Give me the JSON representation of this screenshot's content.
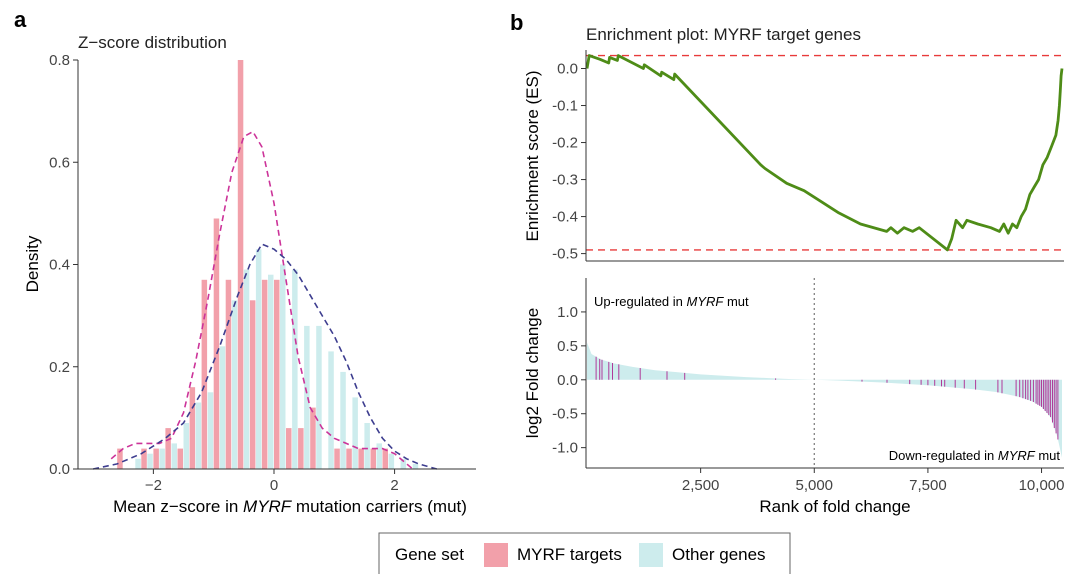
{
  "panel_a": {
    "letter": "a",
    "chart_data": {
      "type": "bar",
      "title": "Z−score distribution",
      "xlabel_parts": [
        "Mean z−score in ",
        "MYRF",
        " mutation carriers (mut)"
      ],
      "ylabel": "Density",
      "xlim": [
        -3.25,
        3.35
      ],
      "ylim": [
        0,
        0.8
      ],
      "xticks": [
        {
          "v": -2,
          "label": "−2"
        },
        {
          "v": 0,
          "label": "0"
        },
        {
          "v": 2,
          "label": "2"
        }
      ],
      "yticks": [
        {
          "v": 0,
          "label": "0.0"
        },
        {
          "v": 0.2,
          "label": "0.2"
        },
        {
          "v": 0.4,
          "label": "0.4"
        },
        {
          "v": 0.6,
          "label": "0.6"
        },
        {
          "v": 0.8,
          "label": "0.8"
        }
      ],
      "bin_width": 0.2,
      "bin_starts": [
        -2.6,
        -2.4,
        -2.2,
        -2.0,
        -1.8,
        -1.6,
        -1.4,
        -1.2,
        -1.0,
        -0.8,
        -0.6,
        -0.4,
        -0.2,
        0.0,
        0.2,
        0.4,
        0.6,
        0.8,
        1.0,
        1.2,
        1.4,
        1.6,
        1.8,
        2.0,
        2.2
      ],
      "series": [
        {
          "name": "MYRF targets",
          "color": "#f2a0aa",
          "values": [
            0.04,
            0.0,
            0.04,
            0.04,
            0.08,
            0.04,
            0.16,
            0.37,
            0.49,
            0.37,
            0.8,
            0.33,
            0.37,
            0.37,
            0.08,
            0.08,
            0.12,
            0.0,
            0.04,
            0.04,
            0.04,
            0.04,
            0.04,
            0.0,
            0.0
          ]
        },
        {
          "name": "Other genes",
          "color": "#cdeced",
          "values": [
            0.0,
            0.02,
            0.03,
            0.04,
            0.05,
            0.09,
            0.13,
            0.15,
            0.24,
            0.33,
            0.39,
            0.43,
            0.38,
            0.4,
            0.39,
            0.28,
            0.28,
            0.23,
            0.19,
            0.14,
            0.09,
            0.05,
            0.03,
            0.02,
            0.01
          ]
        }
      ],
      "density_curves": [
        {
          "series": "MYRF targets",
          "color": "#cc3399",
          "points": [
            [
              -2.7,
              0.02
            ],
            [
              -2.5,
              0.04
            ],
            [
              -2.3,
              0.05
            ],
            [
              -2.1,
              0.05
            ],
            [
              -1.9,
              0.05
            ],
            [
              -1.7,
              0.06
            ],
            [
              -1.5,
              0.11
            ],
            [
              -1.3,
              0.21
            ],
            [
              -1.1,
              0.33
            ],
            [
              -0.9,
              0.46
            ],
            [
              -0.7,
              0.58
            ],
            [
              -0.5,
              0.65
            ],
            [
              -0.35,
              0.66
            ],
            [
              -0.2,
              0.63
            ],
            [
              0.0,
              0.52
            ],
            [
              0.2,
              0.37
            ],
            [
              0.4,
              0.22
            ],
            [
              0.6,
              0.12
            ],
            [
              0.8,
              0.08
            ],
            [
              1.0,
              0.06
            ],
            [
              1.2,
              0.05
            ],
            [
              1.4,
              0.04
            ],
            [
              1.6,
              0.04
            ],
            [
              1.8,
              0.04
            ],
            [
              2.0,
              0.03
            ],
            [
              2.2,
              0.01
            ],
            [
              2.3,
              0.0
            ]
          ]
        },
        {
          "series": "Other genes",
          "color": "#3d3d8f",
          "points": [
            [
              -3.0,
              0.0
            ],
            [
              -2.6,
              0.01
            ],
            [
              -2.2,
              0.03
            ],
            [
              -1.8,
              0.06
            ],
            [
              -1.5,
              0.09
            ],
            [
              -1.2,
              0.15
            ],
            [
              -0.9,
              0.24
            ],
            [
              -0.6,
              0.34
            ],
            [
              -0.4,
              0.4
            ],
            [
              -0.2,
              0.44
            ],
            [
              0.0,
              0.43
            ],
            [
              0.2,
              0.41
            ],
            [
              0.4,
              0.38
            ],
            [
              0.6,
              0.34
            ],
            [
              0.8,
              0.3
            ],
            [
              1.0,
              0.26
            ],
            [
              1.2,
              0.21
            ],
            [
              1.4,
              0.15
            ],
            [
              1.6,
              0.1
            ],
            [
              1.8,
              0.06
            ],
            [
              2.0,
              0.035
            ],
            [
              2.2,
              0.02
            ],
            [
              2.4,
              0.01
            ],
            [
              2.7,
              0.0
            ]
          ]
        }
      ]
    }
  },
  "panel_b": {
    "letter": "b",
    "es_chart": {
      "type": "line",
      "title": "Enrichment plot: MYRF target genes",
      "ylabel": "Enrichment score (ES)",
      "xlim": [
        0,
        10450
      ],
      "ylim": [
        -0.52,
        0.05
      ],
      "yticks": [
        {
          "v": 0.0,
          "label": "0.0"
        },
        {
          "v": -0.1,
          "label": "-0.1"
        },
        {
          "v": -0.2,
          "label": "-0.2"
        },
        {
          "v": -0.3,
          "label": "-0.3"
        },
        {
          "v": -0.4,
          "label": "-0.4"
        },
        {
          "v": -0.5,
          "label": "-0.5"
        }
      ],
      "reference_lines": [
        0.035,
        -0.49
      ],
      "line_color": "#4e8c17",
      "ref_color": "#e83a3a",
      "points": [
        [
          0,
          0.0
        ],
        [
          50,
          0.035
        ],
        [
          300,
          0.025
        ],
        [
          500,
          0.015
        ],
        [
          520,
          0.03
        ],
        [
          700,
          0.022
        ],
        [
          720,
          0.035
        ],
        [
          1300,
          0.0
        ],
        [
          1320,
          0.01
        ],
        [
          1700,
          -0.02
        ],
        [
          1720,
          -0.01
        ],
        [
          2000,
          -0.03
        ],
        [
          2020,
          -0.015
        ],
        [
          4000,
          -0.26
        ],
        [
          4100,
          -0.27
        ],
        [
          4600,
          -0.31
        ],
        [
          5000,
          -0.33
        ],
        [
          5400,
          -0.36
        ],
        [
          5800,
          -0.39
        ],
        [
          6300,
          -0.42
        ],
        [
          6900,
          -0.44
        ],
        [
          7000,
          -0.43
        ],
        [
          7150,
          -0.445
        ],
        [
          7300,
          -0.43
        ],
        [
          7500,
          -0.44
        ],
        [
          7650,
          -0.43
        ],
        [
          8300,
          -0.49
        ],
        [
          8400,
          -0.46
        ],
        [
          8500,
          -0.41
        ],
        [
          8650,
          -0.43
        ],
        [
          8750,
          -0.41
        ],
        [
          9000,
          -0.42
        ],
        [
          9300,
          -0.43
        ],
        [
          9500,
          -0.44
        ],
        [
          9600,
          -0.42
        ],
        [
          9700,
          -0.445
        ],
        [
          9800,
          -0.42
        ],
        [
          9900,
          -0.43
        ],
        [
          10000,
          -0.4
        ],
        [
          10100,
          -0.38
        ],
        [
          10200,
          -0.34
        ],
        [
          10300,
          -0.32
        ],
        [
          10400,
          -0.3
        ],
        [
          10500,
          -0.26
        ],
        [
          10600,
          -0.24
        ],
        [
          10700,
          -0.21
        ],
        [
          10800,
          -0.18
        ],
        [
          10850,
          -0.14
        ],
        [
          10880,
          -0.1
        ],
        [
          10900,
          -0.06
        ],
        [
          10920,
          -0.02
        ],
        [
          10940,
          0.0
        ]
      ]
    },
    "fc_chart": {
      "type": "area",
      "ylabel": "log2 Fold change",
      "xlabel": "Rank of fold change",
      "xlim": [
        0,
        10450
      ],
      "ylim": [
        -1.3,
        1.5
      ],
      "xticks": [
        {
          "v": 2500,
          "label": "2,500"
        },
        {
          "v": 5000,
          "label": "5,000"
        },
        {
          "v": 7500,
          "label": "7,500"
        },
        {
          "v": 10000,
          "label": "10,000"
        }
      ],
      "yticks": [
        {
          "v": 1.0,
          "label": "1.0"
        },
        {
          "v": 0.5,
          "label": "0.5"
        },
        {
          "v": 0.0,
          "label": "0.0"
        },
        {
          "v": -0.5,
          "label": "-0.5"
        },
        {
          "v": -1.0,
          "label": "-1.0"
        }
      ],
      "area_color": "#cdeced",
      "tick_color": "#b03a9a",
      "divider_rank": 5000,
      "up_label_parts": [
        "Up-regulated in ",
        "MYRF",
        " mut"
      ],
      "down_label_parts": [
        "Down-regulated in ",
        "MYRF",
        " mut"
      ],
      "curve": [
        [
          0,
          0.55
        ],
        [
          100,
          0.38
        ],
        [
          300,
          0.3
        ],
        [
          600,
          0.24
        ],
        [
          1000,
          0.19
        ],
        [
          1500,
          0.14
        ],
        [
          2000,
          0.11
        ],
        [
          2500,
          0.08
        ],
        [
          3000,
          0.06
        ],
        [
          3500,
          0.04
        ],
        [
          4000,
          0.025
        ],
        [
          4500,
          0.01
        ],
        [
          5000,
          0.0
        ],
        [
          5500,
          -0.01
        ],
        [
          6000,
          -0.025
        ],
        [
          6500,
          -0.04
        ],
        [
          7000,
          -0.06
        ],
        [
          7500,
          -0.08
        ],
        [
          8000,
          -0.11
        ],
        [
          8500,
          -0.14
        ],
        [
          9000,
          -0.18
        ],
        [
          9500,
          -0.25
        ],
        [
          9800,
          -0.32
        ],
        [
          10000,
          -0.4
        ],
        [
          10200,
          -0.55
        ],
        [
          10350,
          -0.85
        ],
        [
          10450,
          -1.15
        ]
      ],
      "target_ranks": [
        200,
        280,
        330,
        480,
        560,
        700,
        1170,
        1760,
        2150,
        4150,
        6050,
        6600,
        7100,
        7350,
        7500,
        7650,
        7800,
        7870,
        8100,
        8300,
        8550,
        9040,
        9130,
        9440,
        9520,
        9590,
        9650,
        9700,
        9760,
        9820,
        9880,
        9920,
        9960,
        10000,
        10040,
        10080,
        10120,
        10160,
        10200,
        10240,
        10280,
        10320,
        10360
      ]
    }
  },
  "legend": {
    "title": "Gene set",
    "items": [
      {
        "label": "MYRF targets",
        "color": "#f2a0aa"
      },
      {
        "label": "Other genes",
        "color": "#cdeced"
      }
    ]
  }
}
